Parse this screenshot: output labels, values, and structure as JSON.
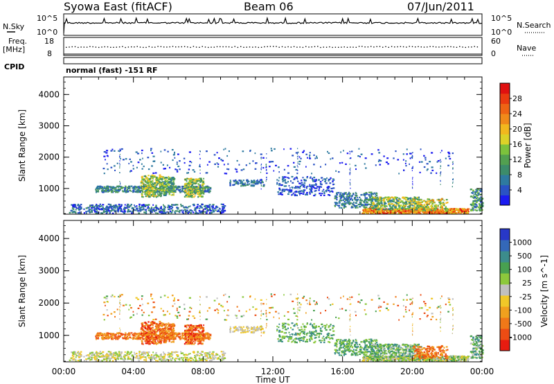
{
  "header": {
    "station": "Syowa East (fitACF)",
    "beam": "Beam 06",
    "date": "07/Jun/2011"
  },
  "sky_panel": {
    "label": "N.Sky",
    "tick_top": "10^5",
    "tick_bottom": "10^0",
    "right_label": "N.Search",
    "right_tick_top": "10^5",
    "right_tick_bottom": "10^0"
  },
  "freq_panel": {
    "label_line1": "Freq.",
    "label_line2": "[MHz]",
    "tick_top": "18",
    "tick_bottom": "8",
    "right_label": "Nave",
    "right_tick_top": "60",
    "right_tick_bottom": "0"
  },
  "cpid": {
    "label": "CPID",
    "value": "normal (fast) -151 RF"
  },
  "chart_data": [
    {
      "type": "heatmap",
      "name": "power",
      "ylabel": "Slant Range [km]",
      "xlabel": "",
      "x_ticks": [
        "00:00",
        "04:00",
        "08:00",
        "12:00",
        "16:00",
        "20:00",
        "00:00"
      ],
      "xlim_hours": [
        0,
        24
      ],
      "y_ticks": [
        1000,
        2000,
        3000,
        4000
      ],
      "ylim": [
        180,
        4560
      ],
      "colorbar": {
        "label": "Power [dB]",
        "ticks": [
          "4",
          "8",
          "12",
          "16",
          "20",
          "24",
          "28"
        ],
        "colors": [
          "#1b1bf0",
          "#2a52c4",
          "#2e7aa0",
          "#3c8c6a",
          "#52a050",
          "#7cc23c",
          "#dcd228",
          "#f2b81e",
          "#f08a1a",
          "#ee6414",
          "#ea3a10",
          "#e01010"
        ]
      }
    },
    {
      "type": "heatmap",
      "name": "velocity",
      "ylabel": "Slant Range [km]",
      "xlabel": "Time UT",
      "x_ticks": [
        "00:00",
        "04:00",
        "08:00",
        "12:00",
        "16:00",
        "20:00",
        "00:00"
      ],
      "xlim_hours": [
        0,
        24
      ],
      "y_ticks": [
        1000,
        2000,
        3000,
        4000
      ],
      "ylim": [
        180,
        4560
      ],
      "colorbar": {
        "label": "Velocity [m s^-1]",
        "ticks": [
          "1000",
          "500",
          "100",
          "25",
          "-25",
          "-100",
          "-500",
          "-1000"
        ],
        "colors": [
          "#2838c8",
          "#3468b8",
          "#3c8c8c",
          "#48a050",
          "#8cc83c",
          "#c0c0c0",
          "#f0c828",
          "#f0a01e",
          "#f07818",
          "#ec4c14",
          "#e81c10"
        ]
      }
    }
  ]
}
